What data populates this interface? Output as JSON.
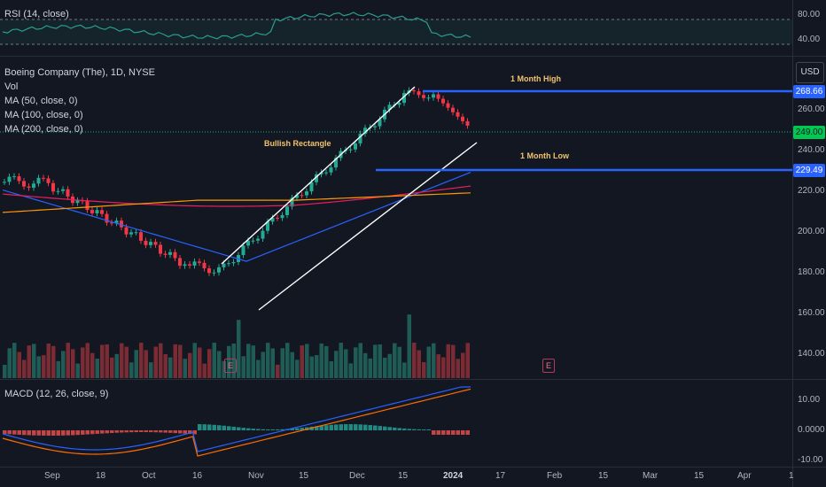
{
  "rsi": {
    "label": "RSI (14, close)",
    "levels": [
      "80.00",
      "40.00"
    ]
  },
  "main": {
    "legend": [
      "Boeing Company (The), 1D, NYSE",
      "Vol",
      "MA (50, close, 0)",
      "MA (100, close, 0)",
      "MA (200, close, 0)"
    ],
    "currency_button": "USD",
    "price_labels": [
      "260.00",
      "240.00",
      "220.00",
      "200.00",
      "180.00",
      "160.00",
      "140.00"
    ],
    "badges": {
      "high": {
        "text": "268.66",
        "color": "#2962ff"
      },
      "last": {
        "text": "249.00",
        "color": "#22ab94"
      },
      "low": {
        "text": "229.49",
        "color": "#2962ff"
      }
    },
    "annotations": {
      "pattern": "Bullish Rectangle",
      "high": "1 Month High",
      "low": "1 Month Low"
    },
    "earnings_marker": "E"
  },
  "macd": {
    "label": "MACD (12, 26, close, 9)",
    "levels": [
      "10.00",
      "0.0000",
      "-10.00"
    ]
  },
  "time_axis": [
    "Sep",
    "18",
    "Oct",
    "16",
    "Nov",
    "15",
    "Dec",
    "15",
    "2024",
    "17",
    "Feb",
    "15",
    "Mar",
    "15",
    "Apr",
    "1"
  ],
  "colors": {
    "up": "#22ab94",
    "down": "#f23645",
    "ma50": "#2962ff",
    "ma100": "#e91e63",
    "ma200": "#ff9800",
    "rsi_line": "#2a9d8f"
  }
}
